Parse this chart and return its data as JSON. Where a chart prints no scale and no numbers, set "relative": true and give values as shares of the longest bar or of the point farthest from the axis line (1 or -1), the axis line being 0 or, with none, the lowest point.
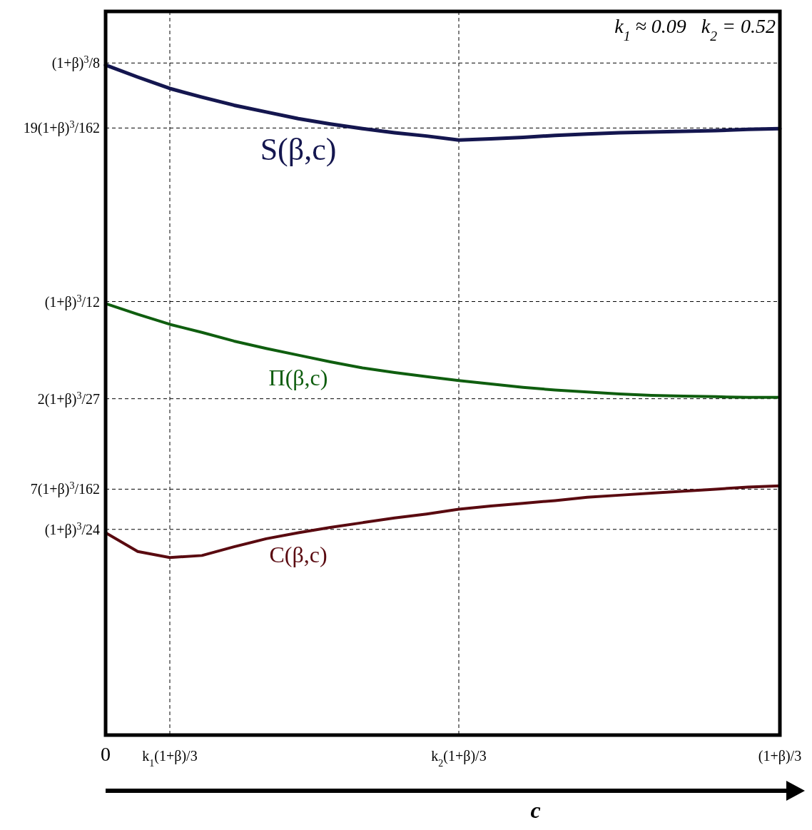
{
  "chart_data": {
    "type": "line",
    "xlabel": "c",
    "relative": true,
    "annotations": [
      "k$_{1}$ ≈ 0.09   k$_{2}$ = 0.52"
    ],
    "categories": [
      "0",
      null,
      "k$_{1}$(1+β)/3",
      null,
      null,
      null,
      null,
      null,
      null,
      null,
      null,
      "k$_{2}$(1+β)/3",
      null,
      null,
      null,
      null,
      null,
      null,
      null,
      null,
      null,
      "(1+β)/3"
    ],
    "series": [
      {
        "name": "S(β,c)",
        "color": "#14164f",
        "values": [
          1,
          0.982,
          0.965,
          0.952,
          0.94,
          0.93,
          0.92,
          0.912,
          0.905,
          0.899,
          0.894,
          0.888,
          0.89,
          0.892,
          0.895,
          0.897,
          0.899,
          0.9,
          0.901,
          0.902,
          0.904,
          0.905
        ]
      },
      {
        "name": "Π(β,c)",
        "color": "#0f5e0f",
        "values": [
          0.644,
          0.628,
          0.613,
          0.601,
          0.588,
          0.577,
          0.567,
          0.557,
          0.548,
          0.541,
          0.535,
          0.529,
          0.524,
          0.519,
          0.515,
          0.512,
          0.509,
          0.507,
          0.506,
          0.505,
          0.504,
          0.504
        ]
      },
      {
        "name": "C(β,c)",
        "color": "#5a0a10",
        "values": [
          0.302,
          0.274,
          0.265,
          0.268,
          0.281,
          0.293,
          0.302,
          0.31,
          0.317,
          0.324,
          0.33,
          0.337,
          0.342,
          0.346,
          0.35,
          0.355,
          0.358,
          0.361,
          0.364,
          0.367,
          0.37,
          0.372
        ]
      }
    ],
    "ref_lines": [
      {
        "axis": "y",
        "value": 1.003,
        "label": "(1+β)$^{3}$/8",
        "line_style": "dashed"
      },
      {
        "axis": "y",
        "value": 0.906,
        "label": "19(1+β)$^{3}$/162",
        "line_style": "dashed"
      },
      {
        "axis": "y",
        "value": 0.647,
        "label": "(1+β)$^{3}$/12",
        "line_style": "dashed"
      },
      {
        "axis": "y",
        "value": 0.502,
        "label": "2(1+β)$^{3}$/27",
        "line_style": "dashed"
      },
      {
        "axis": "y",
        "value": 0.367,
        "label": "7(1+β)$^{3}$/162",
        "line_style": "dashed"
      },
      {
        "axis": "y",
        "value": 0.307,
        "label": "(1+β)$^{3}$/24",
        "line_style": "dashed"
      }
    ],
    "grid": "x",
    "legend": false,
    "marker": "none",
    "line_style": "solid"
  }
}
